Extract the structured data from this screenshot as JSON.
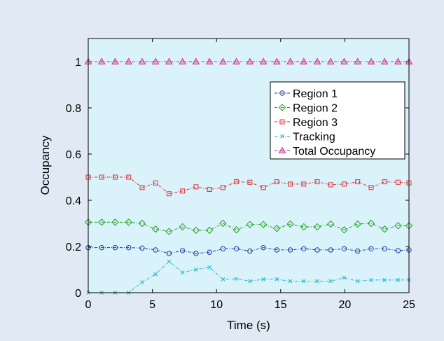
{
  "chart_data": {
    "type": "line",
    "title": "",
    "xlabel": "Time (s)",
    "ylabel": "Occupancy",
    "xlim": [
      0,
      25
    ],
    "ylim": [
      0,
      1.1
    ],
    "xticks": [
      0,
      5,
      10,
      15,
      20,
      25
    ],
    "yticks": [
      0,
      0.2,
      0.4,
      0.6,
      0.8,
      1
    ],
    "grid": false,
    "legend_position": "top-right",
    "plot_background": "#daf2fa",
    "x": [
      0,
      1.05,
      2.1,
      3.15,
      4.2,
      5.25,
      6.3,
      7.35,
      8.4,
      9.45,
      10.5,
      11.55,
      12.6,
      13.65,
      14.7,
      15.75,
      16.8,
      17.85,
      18.9,
      19.95,
      21,
      22.05,
      23.1,
      24.15,
      25
    ],
    "series": [
      {
        "name": "Region 1",
        "color": "#1f3a9e",
        "marker": "circle",
        "values": [
          0.195,
          0.195,
          0.195,
          0.195,
          0.193,
          0.185,
          0.17,
          0.182,
          0.17,
          0.175,
          0.19,
          0.19,
          0.18,
          0.195,
          0.185,
          0.185,
          0.19,
          0.185,
          0.185,
          0.19,
          0.18,
          0.19,
          0.19,
          0.182,
          0.185
        ]
      },
      {
        "name": "Region 2",
        "color": "#20a020",
        "marker": "diamond",
        "values": [
          0.305,
          0.305,
          0.305,
          0.305,
          0.3,
          0.275,
          0.265,
          0.285,
          0.27,
          0.27,
          0.3,
          0.272,
          0.295,
          0.295,
          0.278,
          0.297,
          0.285,
          0.285,
          0.297,
          0.272,
          0.297,
          0.3,
          0.275,
          0.29,
          0.29
        ]
      },
      {
        "name": "Region 3",
        "color": "#e03030",
        "marker": "square",
        "values": [
          0.5,
          0.5,
          0.5,
          0.5,
          0.455,
          0.475,
          0.428,
          0.44,
          0.458,
          0.447,
          0.455,
          0.48,
          0.478,
          0.455,
          0.48,
          0.47,
          0.47,
          0.48,
          0.467,
          0.47,
          0.48,
          0.455,
          0.48,
          0.478,
          0.475
        ]
      },
      {
        "name": "Tracking",
        "color": "#20b8c8",
        "marker": "x",
        "values": [
          0,
          0,
          0,
          0,
          0.045,
          0.08,
          0.135,
          0.088,
          0.1,
          0.11,
          0.058,
          0.06,
          0.05,
          0.058,
          0.058,
          0.05,
          0.05,
          0.05,
          0.05,
          0.065,
          0.05,
          0.055,
          0.055,
          0.055,
          0.055
        ]
      },
      {
        "name": "Total Occupancy",
        "color": "#d0308c",
        "marker": "triangle",
        "values": [
          1,
          1,
          1,
          1,
          1,
          1,
          1,
          1,
          1,
          1,
          1,
          1,
          1,
          1,
          1,
          1,
          1,
          1,
          1,
          1,
          1,
          1,
          1,
          1,
          1
        ]
      }
    ]
  }
}
